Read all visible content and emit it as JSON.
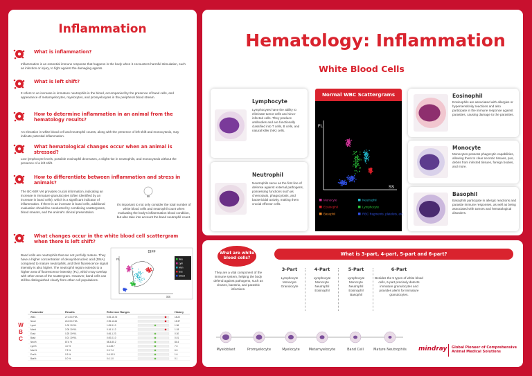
{
  "left": {
    "title": "Inflammation",
    "sections": [
      {
        "heading": "What is inflammation?",
        "body": "Inflammation is an essential immune response that happens in the body when it encounters harmful stimulation, such as infection or injury, to fight against the damaging agents."
      },
      {
        "heading": "What is left shift?",
        "body": "It refers to an increase in immature neutrophils in the blood, accompanied by the presence of band cells, and appearance of metamyelocytes, myelocytes, and promyelocytes in the peripheral blood stream."
      },
      {
        "heading": "How to determine inflammation in an animal from the hematology results?",
        "body": "An elevation in white blood cell and neutrophil counts, along with the presence of left shift and monocytosis, may indicate potential inflammation."
      },
      {
        "heading": "What hematological changes occur when an animal is stressed?",
        "body": "Low lymphocyte levels, possible eosinophil decreases, a slight rise in neutrophils, and monocytosis without the presence of a left shift."
      },
      {
        "heading": "How to differentiate between inflammation and stress in animals?",
        "body": "The BC-60R Vet provides crucial information, indicating an increase in immature granulocytes (often identified by an increase in band cells), which is a significant indicator of inflammation. If there is an increase in band cells, additional evaluation should be conducted by combining scattergrams, blood smears, and the animal's clinical presentation.",
        "tip": "It's important to not only consider the total number of white blood cells and neutrophil count when evaluating the body's inflammation blood condition, but also take into account the band neutrophil count."
      },
      {
        "heading": "What changes occur in the white blood cell scattergram when there is left shift?",
        "body": "Band cells are neutrophils that are not yet fully mature. They have a higher concentration of deoxyribonucleic acid (DNA) compared to mature neutrophils, and their fluorescence signal intensity is also higher. The neutrophil region extends to a higher area of fluorescence intensity (FL), which may overlap with other areas of the scattergram. However, band cells can still be distinguished clearly from other cell populations."
      }
    ],
    "scattergram": {
      "title": "DIFF",
      "y_label": "FL",
      "x_label": "SS",
      "region": "BAND",
      "legend": [
        "Neu",
        "Lym",
        "Mon",
        "Eos",
        "Ghost"
      ]
    },
    "table": {
      "side_label": [
        "W",
        "B",
        "C"
      ],
      "header": [
        "Parameter",
        "Results",
        "Reference Ranges",
        "History"
      ],
      "rows": [
        [
          "WBC",
          "27.43 10^9/L",
          "5.05-16.76",
          "18.22"
        ],
        [
          "Neu#",
          "24.03 10^9/L",
          "2.95-11.64",
          "15.37"
        ],
        [
          "Lym#",
          "1.09 10^9/L",
          "1.05-5.10",
          "1.36"
        ],
        [
          "Mon#",
          "2.05 10^9/L",
          "0.16-1.12",
          "1.18"
        ],
        [
          "Eos#",
          "0.25 10^9/L",
          "0.06-1.23",
          "0.30"
        ],
        [
          "Bas#",
          "0.01 10^9/L",
          "0.00-0.10",
          "0.01"
        ],
        [
          "Neu%",
          "87.6 %",
          "58.3-80.2",
          "84.4"
        ],
        [
          "Lym%",
          "4.0 %",
          "6.3-28.7",
          "7.5"
        ],
        [
          "Mon%",
          "7.5 %",
          "0.9-7.4",
          "6.5"
        ],
        [
          "Eos%",
          "0.9 %",
          "0.6-10.5",
          "1.6"
        ],
        [
          "Bas%",
          "0.0 %",
          "0.0-1.0",
          "0.1"
        ]
      ]
    }
  },
  "right_top": {
    "title": "Hematology: Inflammation",
    "subtitle": "White Blood Cells",
    "cells": [
      {
        "name": "Lymphocyte",
        "text": "Lymphocytes have the ability to eliminate tumor cells and virus-infected cells. They produce antibodies and are functionally classified into T cells, B cells, and natural killer (NK) cells."
      },
      {
        "name": "Neutrophil",
        "text": "Neutrophils serve as the first line of defense against external pathogens, possessing functions such as chemotaxis, phagocytosis, and bactericidal activity, making them crucial effector cells."
      },
      {
        "name": "Eosinophil",
        "text": "Eosinophils are associated with allergies or hypersensitivity reactions and also participate in the immune response against parasites, causing damage to the parasites."
      },
      {
        "name": "Monocyte",
        "text": "Monocytes possess phagocytic capabilities, allowing them to clear necrotic tissues, pus, debris from infected tissues, foreign bodies, and more."
      },
      {
        "name": "Basophil",
        "text": "Basophils participate in allergic reactions and parasite immune responses, as well as being associated with tumors and hematological disorders."
      }
    ],
    "scattergram": {
      "title": "Normal WBC Scattergrams",
      "y_label": "FL",
      "x_label": "SS",
      "legend": [
        {
          "name": "Monocyte",
          "color": "#d2359a"
        },
        {
          "name": "Neutrophil",
          "color": "#22b5c9"
        },
        {
          "name": "Eosinophil",
          "color": "#e0202a"
        },
        {
          "name": "Lymphocyte",
          "color": "#2bc43a"
        },
        {
          "name": "Basophil",
          "color": "#f08a28"
        },
        {
          "name": "RBC fragments, platelets, etc.",
          "color": "#3050e0"
        }
      ]
    }
  },
  "right_bottom": {
    "question": "What are white blood cells?",
    "answer": "They are a vital component of the immune system, helping the body defend against pathogens, such as viruses, bacteria, and parasitic infections.",
    "parts_title": "What is 3-part, 4-part, 5-part and 6-part?",
    "parts": [
      {
        "name": "3-Part",
        "items": [
          "Lymphocyte",
          "Monocyte",
          "Granulocyte"
        ]
      },
      {
        "name": "4-Part",
        "items": [
          "Lymphocyte",
          "Monocyte",
          "Neutrophil",
          "Eosinophil"
        ]
      },
      {
        "name": "5-Part",
        "items": [
          "Lymphocyte",
          "Monocyte",
          "Neutrophil",
          "Eosinophil",
          "Basophil"
        ]
      },
      {
        "name": "6-Part",
        "items": [
          "Besides the 5 types of white blood cells, 6-part precisely detects immature granulocytes and provides alerts for immature granulocytes."
        ]
      }
    ],
    "stages": [
      "Myeloblast",
      "Promyelocyte",
      "Myelocyte",
      "Metamyelocyte",
      "Band Cell",
      "Mature Neutrophils"
    ],
    "brand": "mindray",
    "tagline": "Global Pioneer of Comprehensive Animal Medical Solutions"
  }
}
